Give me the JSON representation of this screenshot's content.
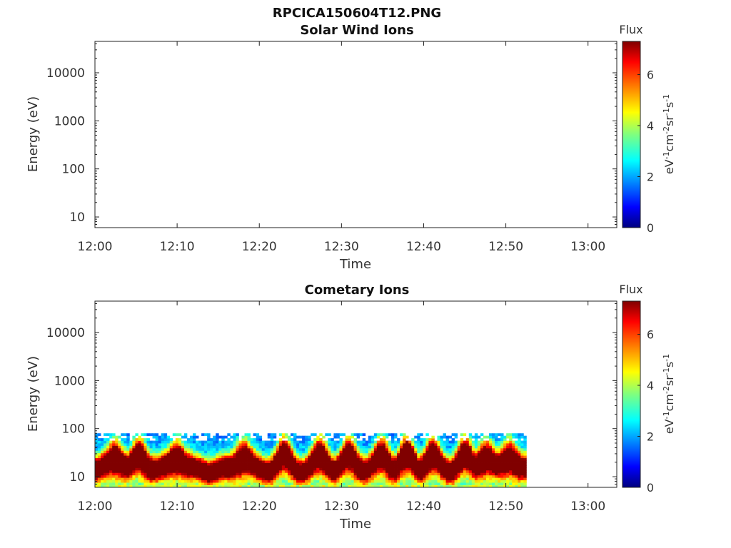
{
  "figure": {
    "title": "RPCICA150604T12.PNG"
  },
  "colorbar": {
    "label": "Flux",
    "unit_main": "eV",
    "unit_parts": [
      "eV",
      "-1",
      "cm",
      "-2",
      "sr",
      "-1",
      "s",
      "-1"
    ],
    "min": 0,
    "max": 7.3,
    "ticks": [
      0,
      2,
      4,
      6
    ],
    "tick_labels": [
      "0",
      "2",
      "4",
      "6"
    ],
    "colormap": "jet"
  },
  "chart_data": [
    {
      "type": "heatmap",
      "title": "Solar Wind Ions",
      "xlabel": "Time",
      "ylabel": "Energy (eV)",
      "x_ticks": [
        "12:00",
        "12:10",
        "12:20",
        "12:30",
        "12:40",
        "12:50",
        "13:00"
      ],
      "x_tick_minutes": [
        0,
        10,
        20,
        30,
        40,
        50,
        60
      ],
      "xlim_minutes": [
        0,
        63.5
      ],
      "y_scale": "log",
      "ylim": [
        6,
        45000
      ],
      "y_ticks": [
        10,
        100,
        1000,
        10000
      ],
      "y_tick_labels": [
        "10",
        "100",
        "1000",
        "10000"
      ],
      "data": "none"
    },
    {
      "type": "heatmap",
      "title": "Cometary Ions",
      "xlabel": "Time",
      "ylabel": "Energy (eV)",
      "x_ticks": [
        "12:00",
        "12:10",
        "12:20",
        "12:30",
        "12:40",
        "12:50",
        "13:00"
      ],
      "x_tick_minutes": [
        0,
        10,
        20,
        30,
        40,
        50,
        60
      ],
      "xlim_minutes": [
        0,
        63.5
      ],
      "y_scale": "log",
      "ylim": [
        6,
        45000
      ],
      "y_ticks": [
        10,
        100,
        1000,
        10000
      ],
      "y_tick_labels": [
        "10",
        "100",
        "1000",
        "10000"
      ],
      "data_coverage_minutes": [
        0,
        52.5
      ],
      "energy_range_eV": [
        6,
        80
      ],
      "peak_flux_energy_eV": [
        10,
        40
      ],
      "flux_range": [
        2,
        7.3
      ]
    }
  ]
}
